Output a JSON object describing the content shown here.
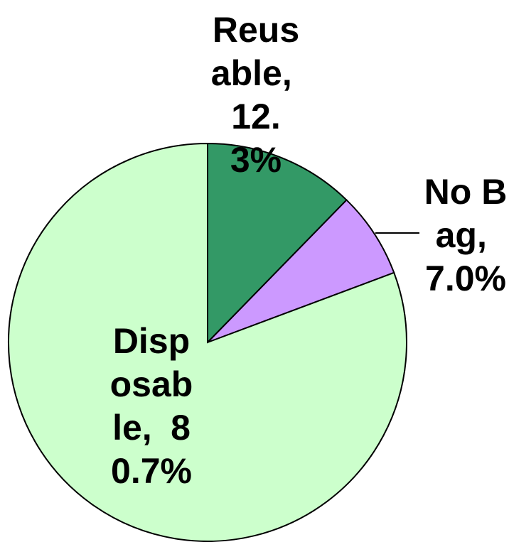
{
  "chart_data": {
    "type": "pie",
    "categories": [
      "Reusable",
      "No Bag",
      "Disposable"
    ],
    "values": [
      12.3,
      7.0,
      80.7
    ],
    "value_labels": [
      "12.3%",
      "7.0%",
      "80.7%"
    ],
    "colors": [
      "#339966",
      "#cc99ff",
      "#ccffcc"
    ]
  }
}
